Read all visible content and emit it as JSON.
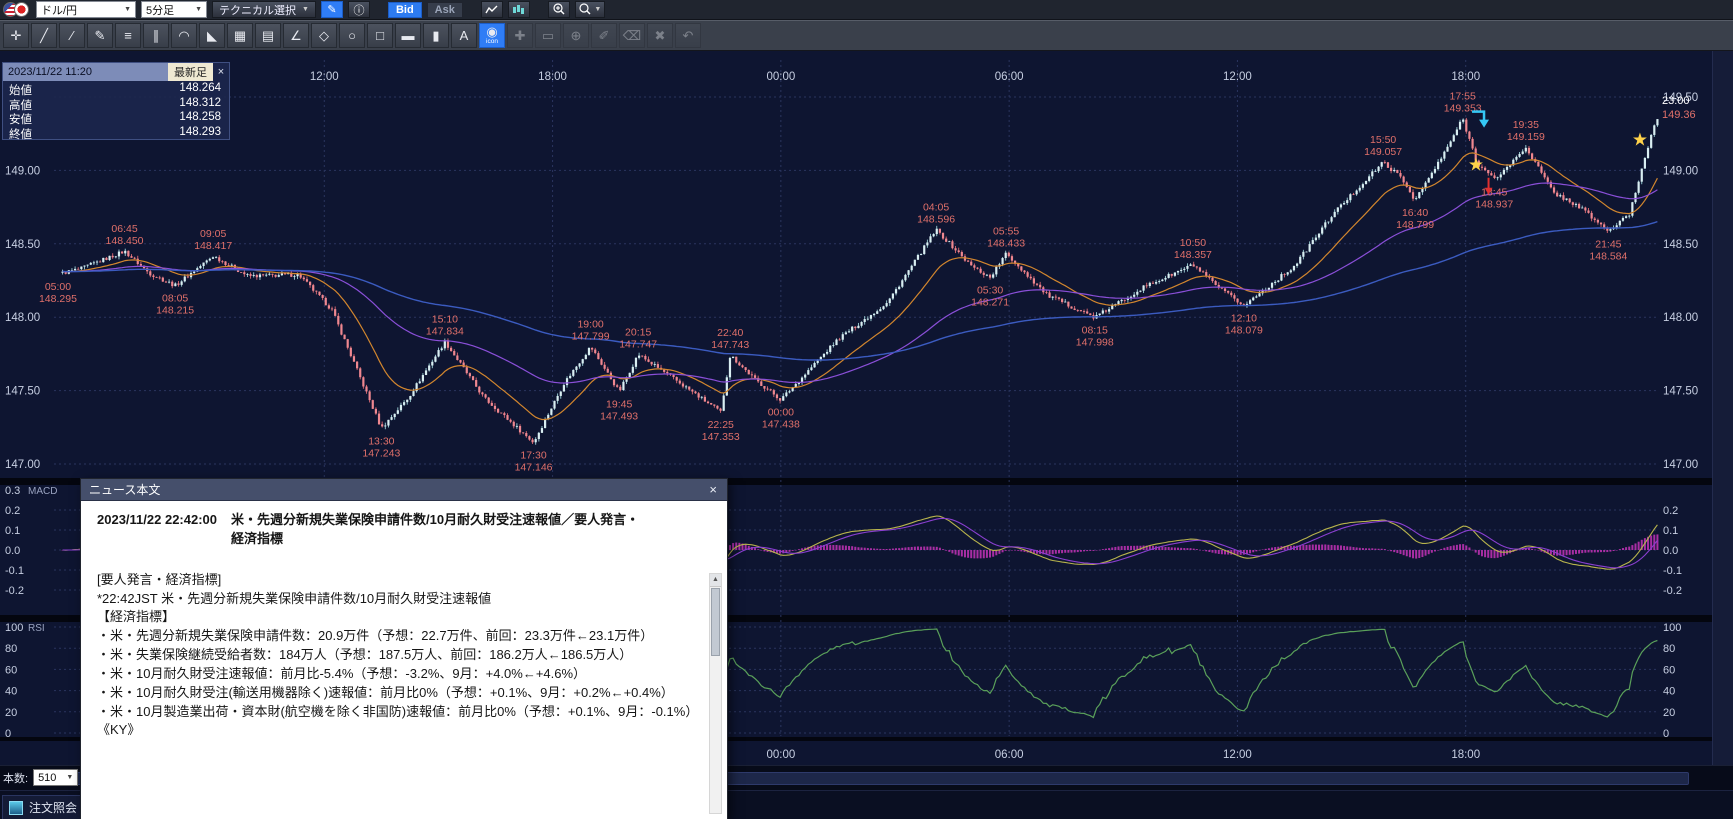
{
  "topbar": {
    "pair_label": "ドル/円",
    "timeframe_label": "5分足",
    "technical_label": "テクニカル選択",
    "bid_label": "Bid",
    "ask_label": "Ask"
  },
  "drawtools": {
    "tools": [
      {
        "name": "crosshair-tool",
        "glyph": "✛"
      },
      {
        "name": "trendline-tool",
        "glyph": "╱"
      },
      {
        "name": "ray-line-tool",
        "glyph": "∕"
      },
      {
        "name": "freehand-pencil-tool",
        "glyph": "✎"
      },
      {
        "name": "horizontal-line-tool",
        "glyph": "≡"
      },
      {
        "name": "parallel-channel-tool",
        "glyph": "∥"
      },
      {
        "name": "fibonacci-arc-tool",
        "glyph": "◠"
      },
      {
        "name": "fibonacci-fan-tool",
        "glyph": "◣"
      },
      {
        "name": "gann-grid-tool",
        "glyph": "▦"
      },
      {
        "name": "grid-tool",
        "glyph": "▤"
      },
      {
        "name": "angle-line-tool",
        "glyph": "∠"
      },
      {
        "name": "polygon-tool",
        "glyph": "◇"
      },
      {
        "name": "ellipse-tool",
        "glyph": "○"
      },
      {
        "name": "rectangle-tool",
        "glyph": "□"
      },
      {
        "name": "horizontal-band-tool",
        "glyph": "▬"
      },
      {
        "name": "vertical-band-tool",
        "glyph": "▮"
      },
      {
        "name": "text-tool",
        "glyph": "A"
      },
      {
        "name": "icon-stamp-tool",
        "glyph": "◉",
        "label": "icon",
        "active": true
      },
      {
        "name": "pan-tool",
        "glyph": "✚",
        "disabled": true
      },
      {
        "name": "measure-tool",
        "glyph": "▭",
        "disabled": true
      },
      {
        "name": "magnify-tool",
        "glyph": "⊕",
        "disabled": true
      },
      {
        "name": "edit-object-tool",
        "glyph": "✐",
        "disabled": true
      },
      {
        "name": "eraser-tool",
        "glyph": "⌫",
        "disabled": true
      },
      {
        "name": "clear-all-tool",
        "glyph": "✖",
        "disabled": true
      },
      {
        "name": "undo-tool",
        "glyph": "↶",
        "disabled": true
      }
    ]
  },
  "info_panel": {
    "datetime": "2023/11/22 11:20",
    "badge": "最新足",
    "close_label": "×",
    "rows": [
      {
        "label": "始値",
        "value": "148.264"
      },
      {
        "label": "高値",
        "value": "148.312"
      },
      {
        "label": "安値",
        "value": "148.258"
      },
      {
        "label": "終値",
        "value": "148.293"
      }
    ]
  },
  "news": {
    "window_title": "ニュース本文",
    "close_label": "×",
    "datetime": "2023/11/22 22:42:00",
    "headline": "米・先週分新規失業保険申請件数/10月耐久財受注速報値／要人発言・経済指標",
    "body_lines": [
      "[要人発言・経済指標]",
      "*22:42JST 米・先週分新規失業保険申請件数/10月耐久財受注速報値",
      "【経済指標】",
      "・米・先週分新規失業保険申請件数：20.9万件（予想：22.7万件、前回：23.3万件←23.1万件）",
      "・米・失業保険継続受給者数：184万人（予想：187.5万人、前回：186.2万人←186.5万人）",
      "・米・10月耐久財受注速報値：前月比-5.4%（予想：-3.2%、9月：+4.0%←+4.6%）",
      "・米・10月耐久財受注(輸送用機器除く)速報値：前月比0%（予想：+0.1%、9月：+0.2%←+0.4%）",
      "・米・10月製造業出荷・資本財(航空機を除く非国防)速報値：前月比0%（予想：+0.1%、9月：-0.1%）",
      "《KY》"
    ]
  },
  "bottom": {
    "bars_label": "本数:",
    "bars_value": "510",
    "order_label": "注文照会"
  },
  "chart_data": {
    "type": "candlestick",
    "symbol": "ドル/円",
    "timeframe": "5分足",
    "candles": 510,
    "t_start": 5.08,
    "t_end": 47.08,
    "price_axis": {
      "min": 147.0,
      "max": 149.5,
      "ticks": [
        149.5,
        149.0,
        148.5,
        148.0,
        147.5,
        147.0
      ],
      "left_ticks": [
        149.0,
        148.5,
        148.0,
        147.5,
        147.0
      ]
    },
    "time_ticks": [
      {
        "t": 12,
        "label": "12:00"
      },
      {
        "t": 18,
        "label": "18:00"
      },
      {
        "t": 24,
        "label": "00:00"
      },
      {
        "t": 30,
        "label": "06:00"
      },
      {
        "t": 36,
        "label": "12:00"
      },
      {
        "t": 42,
        "label": "18:00"
      }
    ],
    "bottom_time_ticks": [
      {
        "t": 24,
        "label": "00:00"
      },
      {
        "t": 30,
        "label": "06:00"
      },
      {
        "t": 36,
        "label": "12:00"
      },
      {
        "t": 42,
        "label": "18:00"
      }
    ],
    "macd_panel": {
      "label": "MACD",
      "ticks": [
        0.2,
        0.1,
        0.0,
        -0.1,
        -0.2
      ],
      "top_left_tick": "0.3"
    },
    "rsi_panel": {
      "label": "RSI",
      "ticks": [
        100,
        80,
        60,
        40,
        20,
        0
      ]
    },
    "anchors": [
      [
        5.0,
        148.295
      ],
      [
        5.6,
        148.33
      ],
      [
        6.75,
        148.45
      ],
      [
        7.4,
        148.3
      ],
      [
        8.08,
        148.215
      ],
      [
        9.08,
        148.417
      ],
      [
        10.0,
        148.28
      ],
      [
        11.33,
        148.29
      ],
      [
        12.2,
        148.05
      ],
      [
        13.5,
        147.243
      ],
      [
        14.2,
        147.45
      ],
      [
        15.17,
        147.834
      ],
      [
        16.2,
        147.45
      ],
      [
        17.5,
        147.146
      ],
      [
        18.3,
        147.55
      ],
      [
        19.0,
        147.799
      ],
      [
        19.75,
        147.493
      ],
      [
        20.25,
        147.747
      ],
      [
        21.3,
        147.56
      ],
      [
        22.42,
        147.353
      ],
      [
        22.67,
        147.743
      ],
      [
        23.3,
        147.58
      ],
      [
        24.0,
        147.438
      ],
      [
        25.5,
        147.85
      ],
      [
        26.8,
        148.1
      ],
      [
        28.08,
        148.596
      ],
      [
        29.0,
        148.35
      ],
      [
        29.5,
        148.271
      ],
      [
        29.92,
        148.433
      ],
      [
        31.0,
        148.15
      ],
      [
        32.25,
        147.998
      ],
      [
        33.5,
        148.2
      ],
      [
        34.83,
        148.357
      ],
      [
        35.5,
        148.2
      ],
      [
        36.17,
        148.079
      ],
      [
        37.5,
        148.35
      ],
      [
        38.5,
        148.7
      ],
      [
        39.83,
        149.057
      ],
      [
        40.3,
        148.95
      ],
      [
        40.67,
        148.799
      ],
      [
        41.4,
        149.1
      ],
      [
        41.92,
        149.353
      ],
      [
        42.3,
        149.05
      ],
      [
        42.75,
        148.937
      ],
      [
        43.2,
        149.05
      ],
      [
        43.58,
        149.159
      ],
      [
        44.3,
        148.85
      ],
      [
        45.0,
        148.75
      ],
      [
        45.75,
        148.584
      ],
      [
        46.3,
        148.7
      ],
      [
        47.0,
        149.36
      ]
    ],
    "annotations": [
      {
        "t": 5.0,
        "p": 148.295,
        "time": "05:00",
        "price": "148.295",
        "pos": "below"
      },
      {
        "t": 6.75,
        "p": 148.45,
        "time": "06:45",
        "price": "148.450",
        "pos": "above"
      },
      {
        "t": 8.08,
        "p": 148.215,
        "time": "08:05",
        "price": "148.215",
        "pos": "below"
      },
      {
        "t": 9.08,
        "p": 148.417,
        "time": "09:05",
        "price": "148.417",
        "pos": "above"
      },
      {
        "t": 13.5,
        "p": 147.243,
        "time": "13:30",
        "price": "147.243",
        "pos": "below"
      },
      {
        "t": 15.17,
        "p": 147.834,
        "time": "15:10",
        "price": "147.834",
        "pos": "above"
      },
      {
        "t": 17.5,
        "p": 147.146,
        "time": "17:30",
        "price": "147.146",
        "pos": "below"
      },
      {
        "t": 19.0,
        "p": 147.799,
        "time": "19:00",
        "price": "147.799",
        "pos": "above"
      },
      {
        "t": 19.75,
        "p": 147.493,
        "time": "19:45",
        "price": "147.493",
        "pos": "below"
      },
      {
        "t": 20.25,
        "p": 147.747,
        "time": "20:15",
        "price": "147.747",
        "pos": "above"
      },
      {
        "t": 22.42,
        "p": 147.353,
        "time": "22:25",
        "price": "147.353",
        "pos": "below"
      },
      {
        "t": 22.67,
        "p": 147.743,
        "time": "22:40",
        "price": "147.743",
        "pos": "above"
      },
      {
        "t": 24.0,
        "p": 147.438,
        "time": "00:00",
        "price": "147.438",
        "pos": "below"
      },
      {
        "t": 28.08,
        "p": 148.596,
        "time": "04:05",
        "price": "148.596",
        "pos": "above"
      },
      {
        "t": 29.5,
        "p": 148.271,
        "time": "05:30",
        "price": "148.271",
        "pos": "below"
      },
      {
        "t": 29.92,
        "p": 148.433,
        "time": "05:55",
        "price": "148.433",
        "pos": "above"
      },
      {
        "t": 32.25,
        "p": 147.998,
        "time": "08:15",
        "price": "147.998",
        "pos": "below"
      },
      {
        "t": 34.83,
        "p": 148.357,
        "time": "10:50",
        "price": "148.357",
        "pos": "above"
      },
      {
        "t": 36.17,
        "p": 148.079,
        "time": "12:10",
        "price": "148.079",
        "pos": "below"
      },
      {
        "t": 39.83,
        "p": 149.057,
        "time": "15:50",
        "price": "149.057",
        "pos": "above"
      },
      {
        "t": 40.67,
        "p": 148.799,
        "time": "16:40",
        "price": "148.799",
        "pos": "below"
      },
      {
        "t": 41.92,
        "p": 149.353,
        "time": "17:55",
        "price": "149.353",
        "pos": "above"
      },
      {
        "t": 42.75,
        "p": 148.937,
        "time": "18:45",
        "price": "148.937",
        "pos": "below"
      },
      {
        "t": 43.58,
        "p": 149.159,
        "time": "19:35",
        "price": "149.159",
        "pos": "above"
      },
      {
        "t": 45.75,
        "p": 148.584,
        "time": "21:45",
        "price": "148.584",
        "pos": "below"
      }
    ],
    "latest": {
      "time": "23:00",
      "price": "149.36"
    },
    "markers": {
      "stars": [
        {
          "t": 42.27,
          "p": 149.04
        },
        {
          "t": 46.58,
          "p": 149.21
        }
      ],
      "cyan_arrow": {
        "t": 42.35,
        "p": 149.4
      },
      "red_arrow": {
        "t": 42.6,
        "p": 148.95
      }
    },
    "colors": {
      "bg": "#0e1531",
      "grid": "#2a355f",
      "axis_text": "#c7cfe2",
      "candle_up": "#d9eef2",
      "candle_down": "#ef8890",
      "wick_up": "#9fd4da",
      "wick_down": "#e06a74",
      "ma1": "#d2862e",
      "ma2": "#8a4fd8",
      "ma3": "#3b5bc0",
      "macd_hist": "#c433b8",
      "macd_line": "#b8b44c",
      "macd_signal": "#8a3fd0",
      "rsi": "#5aa05a",
      "annotation": "#e0706a",
      "star": "#ffd24a",
      "arrow_cyan": "#35c8f5",
      "arrow_red": "#e03030"
    }
  }
}
